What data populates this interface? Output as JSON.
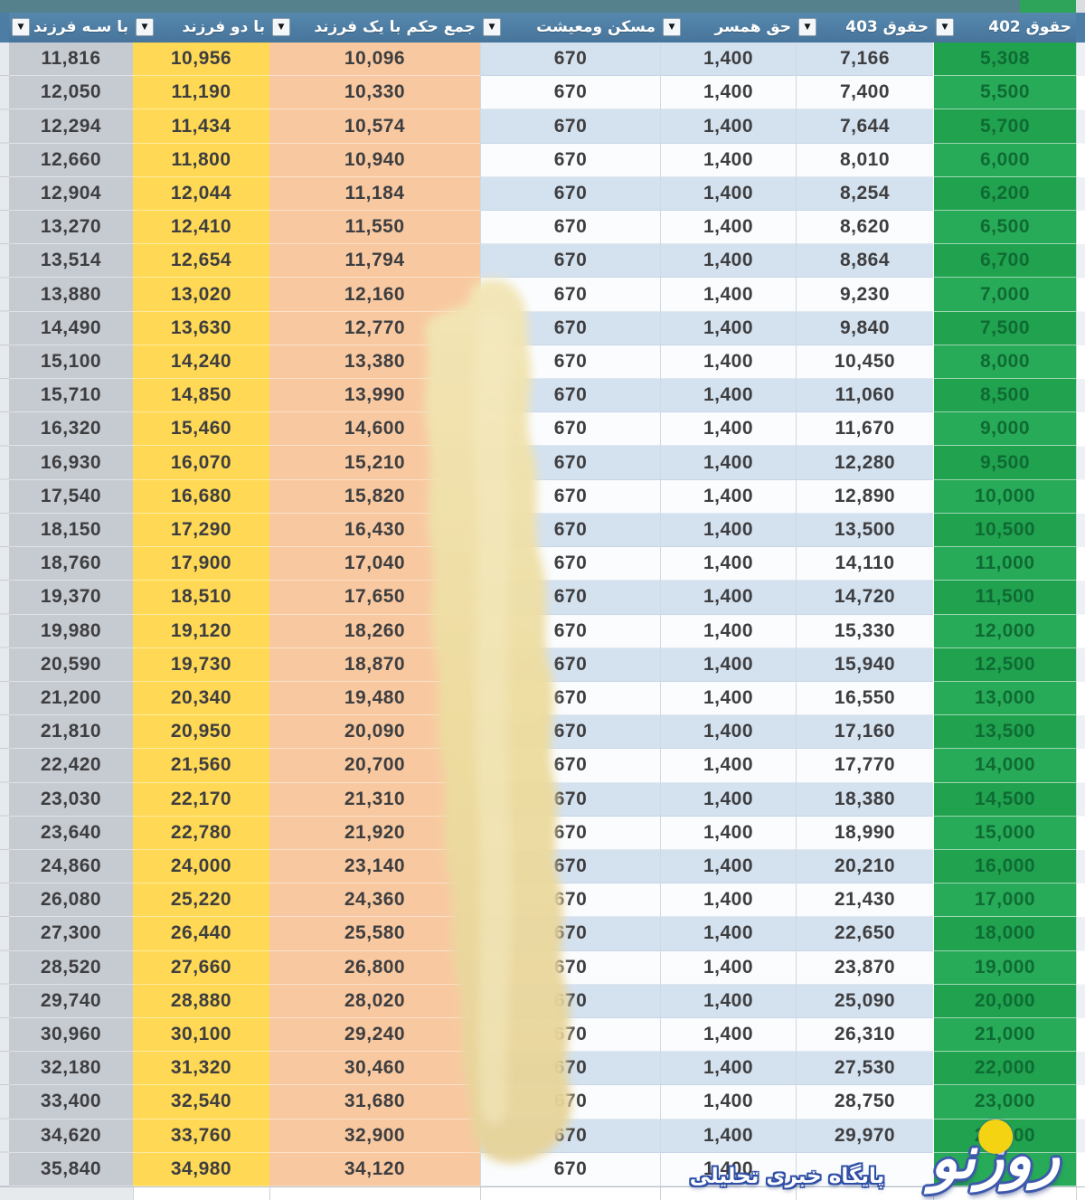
{
  "app": {
    "kind": "spreadsheet-table-screenshot",
    "language": "fa",
    "direction": "rtl"
  },
  "header": {
    "columns": [
      {
        "key": "h402",
        "label": "حقوق 402"
      },
      {
        "key": "h403",
        "label": "حقوق 403"
      },
      {
        "key": "hamsar",
        "label": "حق همسر"
      },
      {
        "key": "maskan",
        "label": "مسکن ومعیشت"
      },
      {
        "key": "jam1",
        "label": "جمع حکم با یک فرزند"
      },
      {
        "key": "do",
        "label": "با دو فرزند"
      },
      {
        "key": "se",
        "label": "با سـه فرزند"
      }
    ],
    "filter_icon": "▼"
  },
  "table": {
    "note_column_order": "rows follow header.columns order (right-to-left on screen)",
    "rows": [
      [
        "5,308",
        "7,166",
        "1,400",
        "670",
        "10,096",
        "10,956",
        "11,816"
      ],
      [
        "5,500",
        "7,400",
        "1,400",
        "670",
        "10,330",
        "11,190",
        "12,050"
      ],
      [
        "5,700",
        "7,644",
        "1,400",
        "670",
        "10,574",
        "11,434",
        "12,294"
      ],
      [
        "6,000",
        "8,010",
        "1,400",
        "670",
        "10,940",
        "11,800",
        "12,660"
      ],
      [
        "6,200",
        "8,254",
        "1,400",
        "670",
        "11,184",
        "12,044",
        "12,904"
      ],
      [
        "6,500",
        "8,620",
        "1,400",
        "670",
        "11,550",
        "12,410",
        "13,270"
      ],
      [
        "6,700",
        "8,864",
        "1,400",
        "670",
        "11,794",
        "12,654",
        "13,514"
      ],
      [
        "7,000",
        "9,230",
        "1,400",
        "670",
        "12,160",
        "13,020",
        "13,880"
      ],
      [
        "7,500",
        "9,840",
        "1,400",
        "670",
        "12,770",
        "13,630",
        "14,490"
      ],
      [
        "8,000",
        "10,450",
        "1,400",
        "670",
        "13,380",
        "14,240",
        "15,100"
      ],
      [
        "8,500",
        "11,060",
        "1,400",
        "670",
        "13,990",
        "14,850",
        "15,710"
      ],
      [
        "9,000",
        "11,670",
        "1,400",
        "670",
        "14,600",
        "15,460",
        "16,320"
      ],
      [
        "9,500",
        "12,280",
        "1,400",
        "670",
        "15,210",
        "16,070",
        "16,930"
      ],
      [
        "10,000",
        "12,890",
        "1,400",
        "670",
        "15,820",
        "16,680",
        "17,540"
      ],
      [
        "10,500",
        "13,500",
        "1,400",
        "670",
        "16,430",
        "17,290",
        "18,150"
      ],
      [
        "11,000",
        "14,110",
        "1,400",
        "670",
        "17,040",
        "17,900",
        "18,760"
      ],
      [
        "11,500",
        "14,720",
        "1,400",
        "670",
        "17,650",
        "18,510",
        "19,370"
      ],
      [
        "12,000",
        "15,330",
        "1,400",
        "670",
        "18,260",
        "19,120",
        "19,980"
      ],
      [
        "12,500",
        "15,940",
        "1,400",
        "670",
        "18,870",
        "19,730",
        "20,590"
      ],
      [
        "13,000",
        "16,550",
        "1,400",
        "670",
        "19,480",
        "20,340",
        "21,200"
      ],
      [
        "13,500",
        "17,160",
        "1,400",
        "670",
        "20,090",
        "20,950",
        "21,810"
      ],
      [
        "14,000",
        "17,770",
        "1,400",
        "670",
        "20,700",
        "21,560",
        "22,420"
      ],
      [
        "14,500",
        "18,380",
        "1,400",
        "670",
        "21,310",
        "22,170",
        "23,030"
      ],
      [
        "15,000",
        "18,990",
        "1,400",
        "670",
        "21,920",
        "22,780",
        "23,640"
      ],
      [
        "16,000",
        "20,210",
        "1,400",
        "670",
        "23,140",
        "24,000",
        "24,860"
      ],
      [
        "17,000",
        "21,430",
        "1,400",
        "670",
        "24,360",
        "25,220",
        "26,080"
      ],
      [
        "18,000",
        "22,650",
        "1,400",
        "670",
        "25,580",
        "26,440",
        "27,300"
      ],
      [
        "19,000",
        "23,870",
        "1,400",
        "670",
        "26,800",
        "27,660",
        "28,520"
      ],
      [
        "20,000",
        "25,090",
        "1,400",
        "670",
        "28,020",
        "28,880",
        "29,740"
      ],
      [
        "21,000",
        "26,310",
        "1,400",
        "670",
        "29,240",
        "30,100",
        "30,960"
      ],
      [
        "22,000",
        "27,530",
        "1,400",
        "670",
        "30,460",
        "31,320",
        "32,180"
      ],
      [
        "23,000",
        "28,750",
        "1,400",
        "670",
        "31,680",
        "32,540",
        "33,400"
      ],
      [
        "24,000",
        "29,970",
        "1,400",
        "670",
        "32,900",
        "33,760",
        "34,620"
      ],
      [
        "",
        "",
        "1,400",
        "670",
        "34,120",
        "34,980",
        "35,840"
      ]
    ]
  },
  "watermark": {
    "logo_text": "روزنو",
    "tagline": "پایگاه خبری تحلیلی"
  },
  "colors": {
    "header_bg": "#4c7da5",
    "header_text": "#ffffff",
    "col_402_green": "#22a551",
    "col_402_text": "#0e6b33",
    "col_yellow": "#ffd955",
    "col_orange": "#f8c9a1",
    "col_gray": "#c6cbd2",
    "band_blue": "#d4e1ef",
    "band_white": "#fafcfe",
    "smudge_beige": "#ecdca6",
    "logo_blue": "#3d58ac",
    "logo_dot_yellow": "#f4d313"
  }
}
